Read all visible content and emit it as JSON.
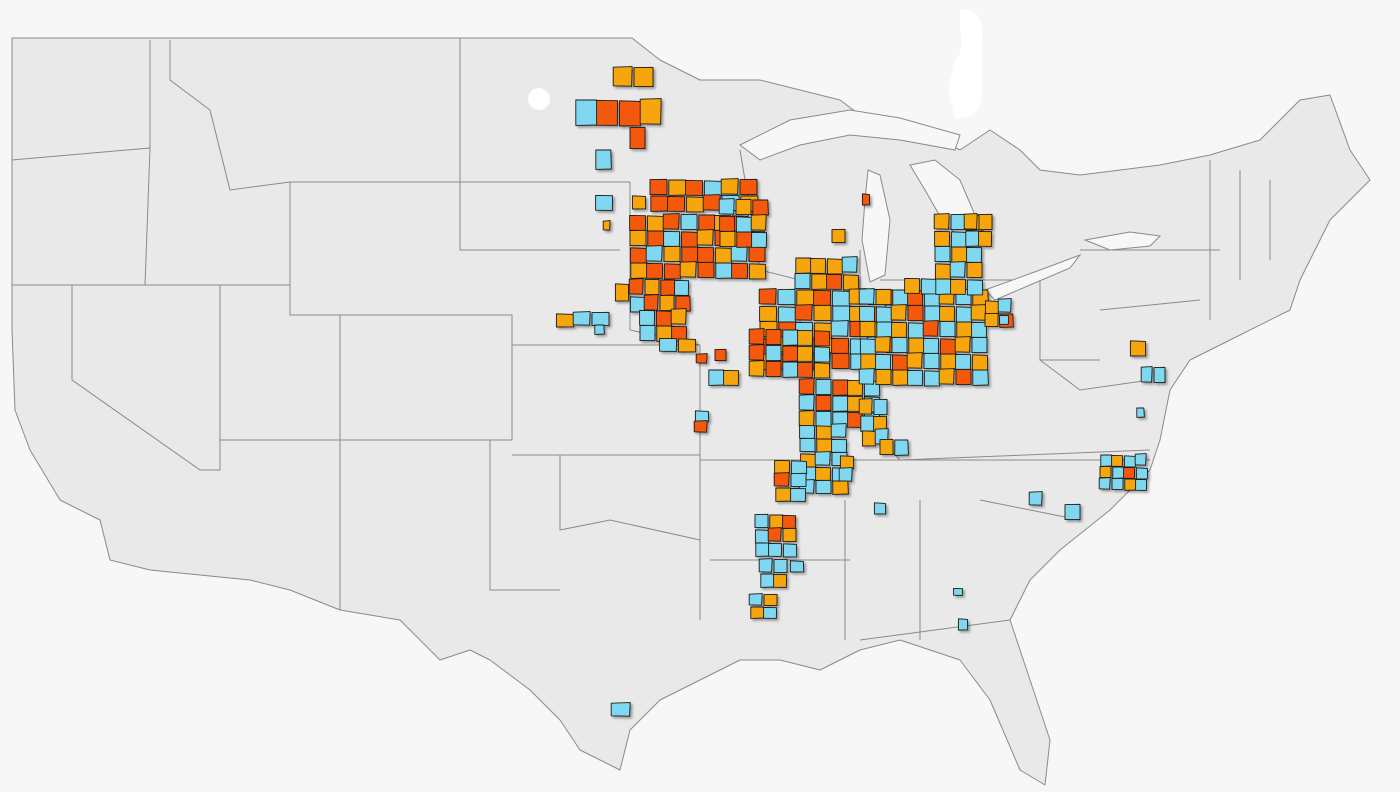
{
  "map": {
    "background": "#f7f7f7",
    "land_color": "#e9e9e9",
    "border_color": "#8a8a8a",
    "category_colors": {
      "orange_red": "#f4580e",
      "amber": "#f6a50b",
      "sky_blue": "#7fd8ef"
    },
    "legend": []
  }
}
